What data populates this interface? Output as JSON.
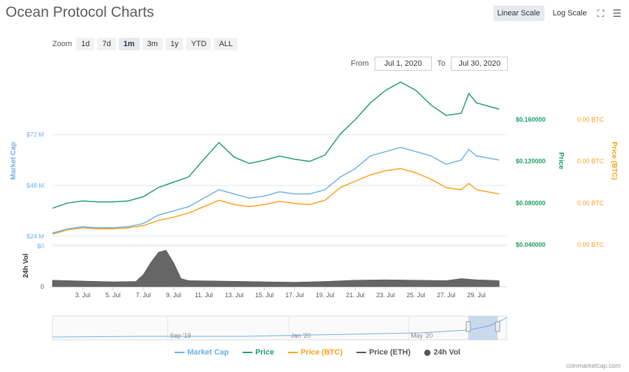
{
  "title": "Ocean Protocol Charts",
  "toolbar": {
    "linear_label": "Linear Scale",
    "log_label": "Log Scale",
    "fullscreen_icon": "fullscreen-icon",
    "menu_icon": "menu-icon"
  },
  "zoom": {
    "label": "Zoom",
    "options": [
      "1d",
      "7d",
      "1m",
      "3m",
      "1y",
      "YTD",
      "ALL"
    ],
    "selected": "1m"
  },
  "range": {
    "from_label": "From",
    "from_value": "Jul 1, 2020",
    "to_label": "To",
    "to_value": "Jul 30, 2020"
  },
  "credit": "coinmarketcap.com",
  "chart_data": {
    "type": "line",
    "x_ticks": [
      "3. Jul",
      "5. Jul",
      "7. Jul",
      "9. Jul",
      "11. Jul",
      "13. Jul",
      "15. Jul",
      "17. Jul",
      "19. Jul",
      "21. Jul",
      "23. Jul",
      "25. Jul",
      "27. Jul",
      "29. Jul"
    ],
    "x_tick_days": [
      3,
      5,
      7,
      9,
      11,
      13,
      15,
      17,
      19,
      21,
      23,
      25,
      27,
      29
    ],
    "xlim": [
      1,
      31
    ],
    "axes": {
      "market_cap": {
        "label": "Market Cap",
        "ticks": [
          "$24 M",
          "$48 M",
          "$72 M"
        ],
        "tick_values": [
          24,
          48,
          72
        ],
        "ylim": [
          20,
          96
        ],
        "unit": "M USD"
      },
      "price": {
        "label": "Price",
        "ticks": [
          "$0.040000",
          "$0.080000",
          "$0.120000",
          "$0.160000"
        ],
        "tick_values": [
          0.04,
          0.08,
          0.12,
          0.16
        ]
      },
      "price_btc": {
        "label": "Price (BTC)",
        "ticks": [
          "0.00 BTC",
          "0.00 BTC",
          "0.00 BTC",
          "0.00 BTC"
        ]
      },
      "volume": {
        "label": "24h Vol",
        "ticks": [
          "$0",
          "0"
        ]
      }
    },
    "series": [
      {
        "name": "Market Cap",
        "color": "#6cb0e6",
        "x": [
          1,
          2,
          3,
          4,
          5,
          6,
          7,
          8,
          9,
          10,
          11,
          12,
          13,
          14,
          15,
          16,
          17,
          18,
          19,
          20,
          21,
          22,
          23,
          24,
          25,
          26,
          27,
          28,
          28.5,
          29,
          30.5
        ],
        "values": [
          25.5,
          27.5,
          28.5,
          28.0,
          28.0,
          28.5,
          30.0,
          34.0,
          36.0,
          38.0,
          42.0,
          46.0,
          44.0,
          42.0,
          43.0,
          45.0,
          44.0,
          44.0,
          46.0,
          52.0,
          56.0,
          62.0,
          64.0,
          66.0,
          64.0,
          62.0,
          58.0,
          60.0,
          65.0,
          62.0,
          60.0
        ]
      },
      {
        "name": "Price",
        "color": "#1e9e6a",
        "x": [
          1,
          2,
          3,
          4,
          5,
          6,
          7,
          8,
          9,
          10,
          11,
          12,
          13,
          14,
          15,
          16,
          17,
          18,
          19,
          20,
          21,
          22,
          23,
          24,
          25,
          26,
          27,
          28,
          28.5,
          29,
          30.5
        ],
        "values": [
          0.075,
          0.08,
          0.082,
          0.081,
          0.081,
          0.082,
          0.086,
          0.095,
          0.1,
          0.105,
          0.122,
          0.138,
          0.124,
          0.118,
          0.121,
          0.125,
          0.122,
          0.12,
          0.126,
          0.146,
          0.16,
          0.176,
          0.188,
          0.196,
          0.188,
          0.174,
          0.164,
          0.166,
          0.185,
          0.176,
          0.17
        ]
      },
      {
        "name": "Price (BTC)",
        "color": "#f7a21b",
        "x": [
          1,
          2,
          3,
          4,
          5,
          6,
          7,
          8,
          9,
          10,
          11,
          12,
          13,
          14,
          15,
          16,
          17,
          18,
          19,
          20,
          21,
          22,
          23,
          24,
          25,
          26,
          27,
          28,
          28.5,
          29,
          30.5
        ],
        "values": [
          25.0,
          27.0,
          28.0,
          27.5,
          27.5,
          28.0,
          29.0,
          31.5,
          33.0,
          35.0,
          38.0,
          41.0,
          39.0,
          38.0,
          39.0,
          40.5,
          39.5,
          39.0,
          41.0,
          47.0,
          50.0,
          53.0,
          55.0,
          56.0,
          54.0,
          51.0,
          47.0,
          46.0,
          49.0,
          46.0,
          44.0
        ]
      },
      {
        "name": "Price (ETH)",
        "color": "#555555",
        "x": [],
        "values": []
      },
      {
        "name": "24h Vol",
        "color": "#666666",
        "x": [
          1,
          3,
          5,
          6.5,
          7,
          7.5,
          8,
          8.5,
          9,
          9.5,
          10,
          12,
          15,
          17,
          19,
          21,
          23,
          25,
          27,
          28,
          29,
          30.5
        ],
        "values": [
          0.16,
          0.14,
          0.12,
          0.13,
          0.3,
          0.6,
          0.85,
          0.9,
          0.6,
          0.2,
          0.15,
          0.14,
          0.12,
          0.11,
          0.13,
          0.16,
          0.17,
          0.16,
          0.15,
          0.2,
          0.17,
          0.15
        ]
      }
    ],
    "navigator_labels": [
      "Sep '19",
      "Jan '20",
      "May '20"
    ],
    "legend_position": "bottom",
    "grid": true
  }
}
